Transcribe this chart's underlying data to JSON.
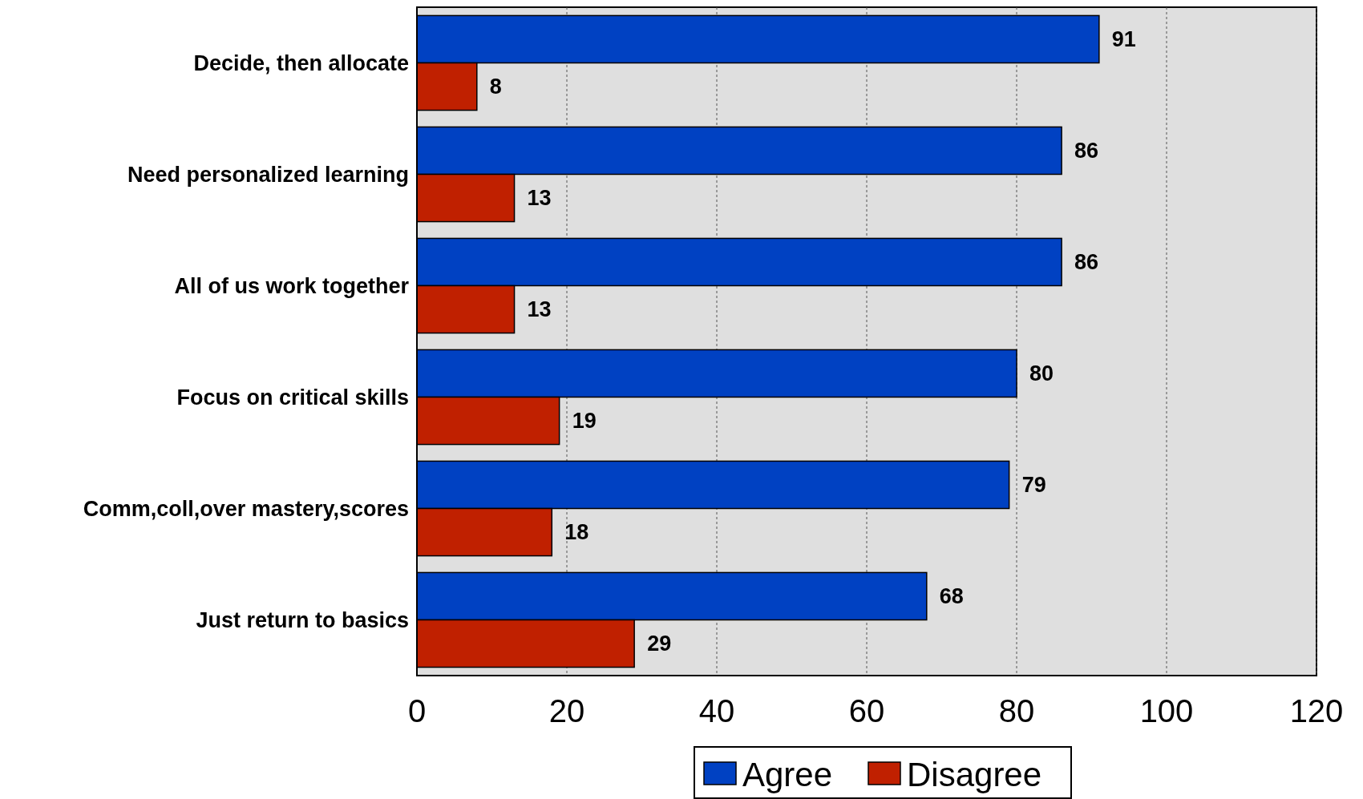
{
  "chart_data": {
    "type": "bar",
    "orientation": "horizontal",
    "categories": [
      "Decide, then allocate",
      "Need personalized learning",
      "All of us work together",
      "Focus on critical skills",
      "Comm,coll,over mastery,scores",
      "Just return to basics"
    ],
    "series": [
      {
        "name": "Agree",
        "color": "#0041c2",
        "values": [
          91,
          86,
          86,
          80,
          79,
          68
        ]
      },
      {
        "name": "Disagree",
        "color": "#c02000",
        "values": [
          8,
          13,
          13,
          19,
          18,
          29
        ]
      }
    ],
    "xlim": [
      0,
      120
    ],
    "xticks": [
      0,
      20,
      40,
      60,
      80,
      100,
      120
    ],
    "grid": "x",
    "legend": "bottom",
    "data_labels": true
  }
}
